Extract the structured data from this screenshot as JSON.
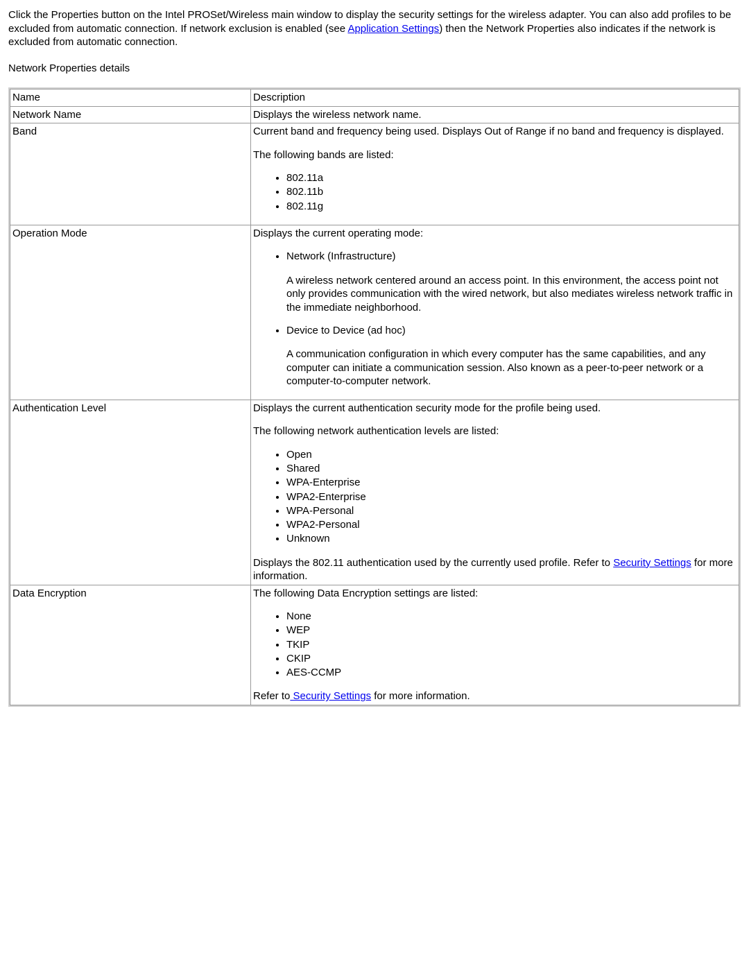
{
  "intro": {
    "prefix": "Click the Properties button on the Intel PROSet/Wireless main window to display the security settings for the wireless adapter. You can also add profiles to be excluded from automatic connection. If network exclusion is enabled (see ",
    "link_text": "Application Settings",
    "suffix": ") then the Network Properties also indicates if the network is excluded from automatic connection."
  },
  "section_title": "Network Properties details",
  "header": {
    "name": "Name",
    "description": "Description"
  },
  "rows": {
    "network_name": {
      "name": "Network Name",
      "desc": "Displays the wireless network name."
    },
    "band": {
      "name": "Band",
      "line1": "Current band and frequency being used. Displays Out of Range if no band and frequency is displayed.",
      "line2": "The following bands are listed:",
      "items": {
        "0": "802.11a",
        "1": "802.11b",
        "2": "802.11g"
      }
    },
    "op_mode": {
      "name": "Operation Mode",
      "line1": "Displays the current operating mode:",
      "infra_title": "Network (Infrastructure)",
      "infra_desc": "A wireless network centered around an access point. In this environment, the access point not only provides communication with the wired network, but also mediates wireless network traffic in the immediate neighborhood.",
      "adhoc_title": "Device to Device (ad hoc)",
      "adhoc_desc": "A communication configuration in which every computer has the same capabilities, and any computer can initiate a communication session. Also known as a peer-to-peer network or a computer-to-computer network."
    },
    "auth": {
      "name": "Authentication Level",
      "line1": "Displays the current authentication security mode for the profile being used.",
      "line2": "The following network authentication levels are listed:",
      "items": {
        "0": "Open",
        "1": "Shared",
        "2": "WPA-Enterprise",
        "3": "WPA2-Enterprise",
        "4": "WPA-Personal",
        "5": "WPA2-Personal",
        "6": "Unknown"
      },
      "footer_prefix": "Displays the 802.11 authentication used by the currently used profile. Refer to ",
      "footer_link": "Security Settings",
      "footer_suffix": " for more information."
    },
    "enc": {
      "name": "Data Encryption",
      "line1": "The following Data Encryption settings are listed:",
      "items": {
        "0": "None",
        "1": "WEP",
        "2": "TKIP",
        "3": "CKIP",
        "4": "AES-CCMP"
      },
      "footer_prefix": "Refer to",
      "footer_link": " Security Settings",
      "footer_suffix": " for more information."
    }
  },
  "colors": {
    "link": "#0000ee",
    "border": "#999999",
    "outer_border": "#d0d0d0",
    "text": "#000000",
    "background": "#ffffff"
  }
}
